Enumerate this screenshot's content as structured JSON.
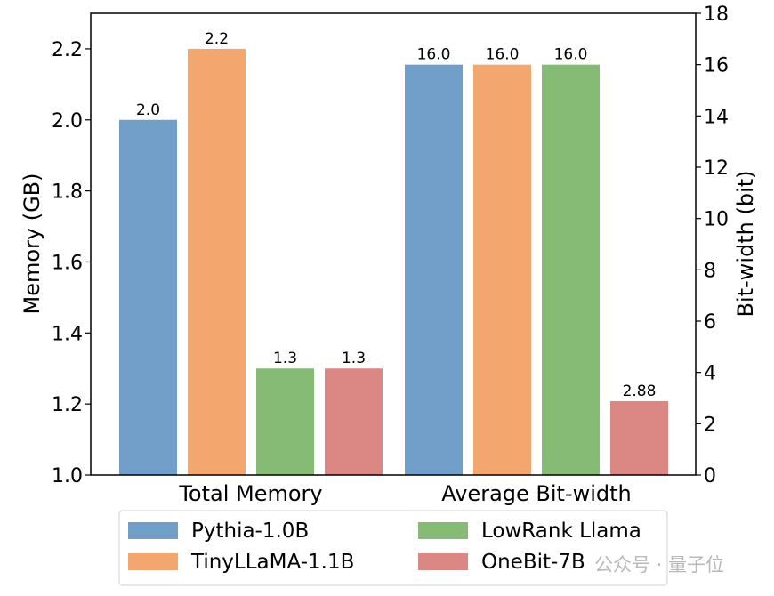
{
  "chart_data": {
    "type": "bar",
    "categories": [
      "Total Memory",
      "Average Bit-width"
    ],
    "series": [
      {
        "name": "Pythia-1.0B",
        "color": "#729ECA",
        "memory_gb": 2.0,
        "memory_label": "2.0",
        "bit_width": 16.0,
        "bit_label": "16.0"
      },
      {
        "name": "TinyLLaMA-1.1B",
        "color": "#F3A76E",
        "memory_gb": 2.2,
        "memory_label": "2.2",
        "bit_width": 16.0,
        "bit_label": "16.0"
      },
      {
        "name": "LowRank Llama",
        "color": "#86BB76",
        "memory_gb": 1.3,
        "memory_label": "1.3",
        "bit_width": 16.0,
        "bit_label": "16.0"
      },
      {
        "name": "OneBit-7B",
        "color": "#DB8784",
        "memory_gb": 1.3,
        "memory_label": "1.3",
        "bit_width": 2.88,
        "bit_label": "2.88"
      }
    ],
    "y_left": {
      "label": "Memory (GB)",
      "lim": [
        1.0,
        2.3
      ],
      "ticks": [
        "1.0",
        "1.2",
        "1.4",
        "1.6",
        "1.8",
        "2.0",
        "2.2"
      ]
    },
    "y_right": {
      "label": "Bit-width (bit)",
      "lim": [
        0,
        18
      ],
      "ticks": [
        "0",
        "2",
        "4",
        "6",
        "8",
        "10",
        "12",
        "14",
        "16",
        "18"
      ]
    },
    "legend": "bottom-outside",
    "grid": false
  },
  "watermark": "公众号 · 量子位"
}
